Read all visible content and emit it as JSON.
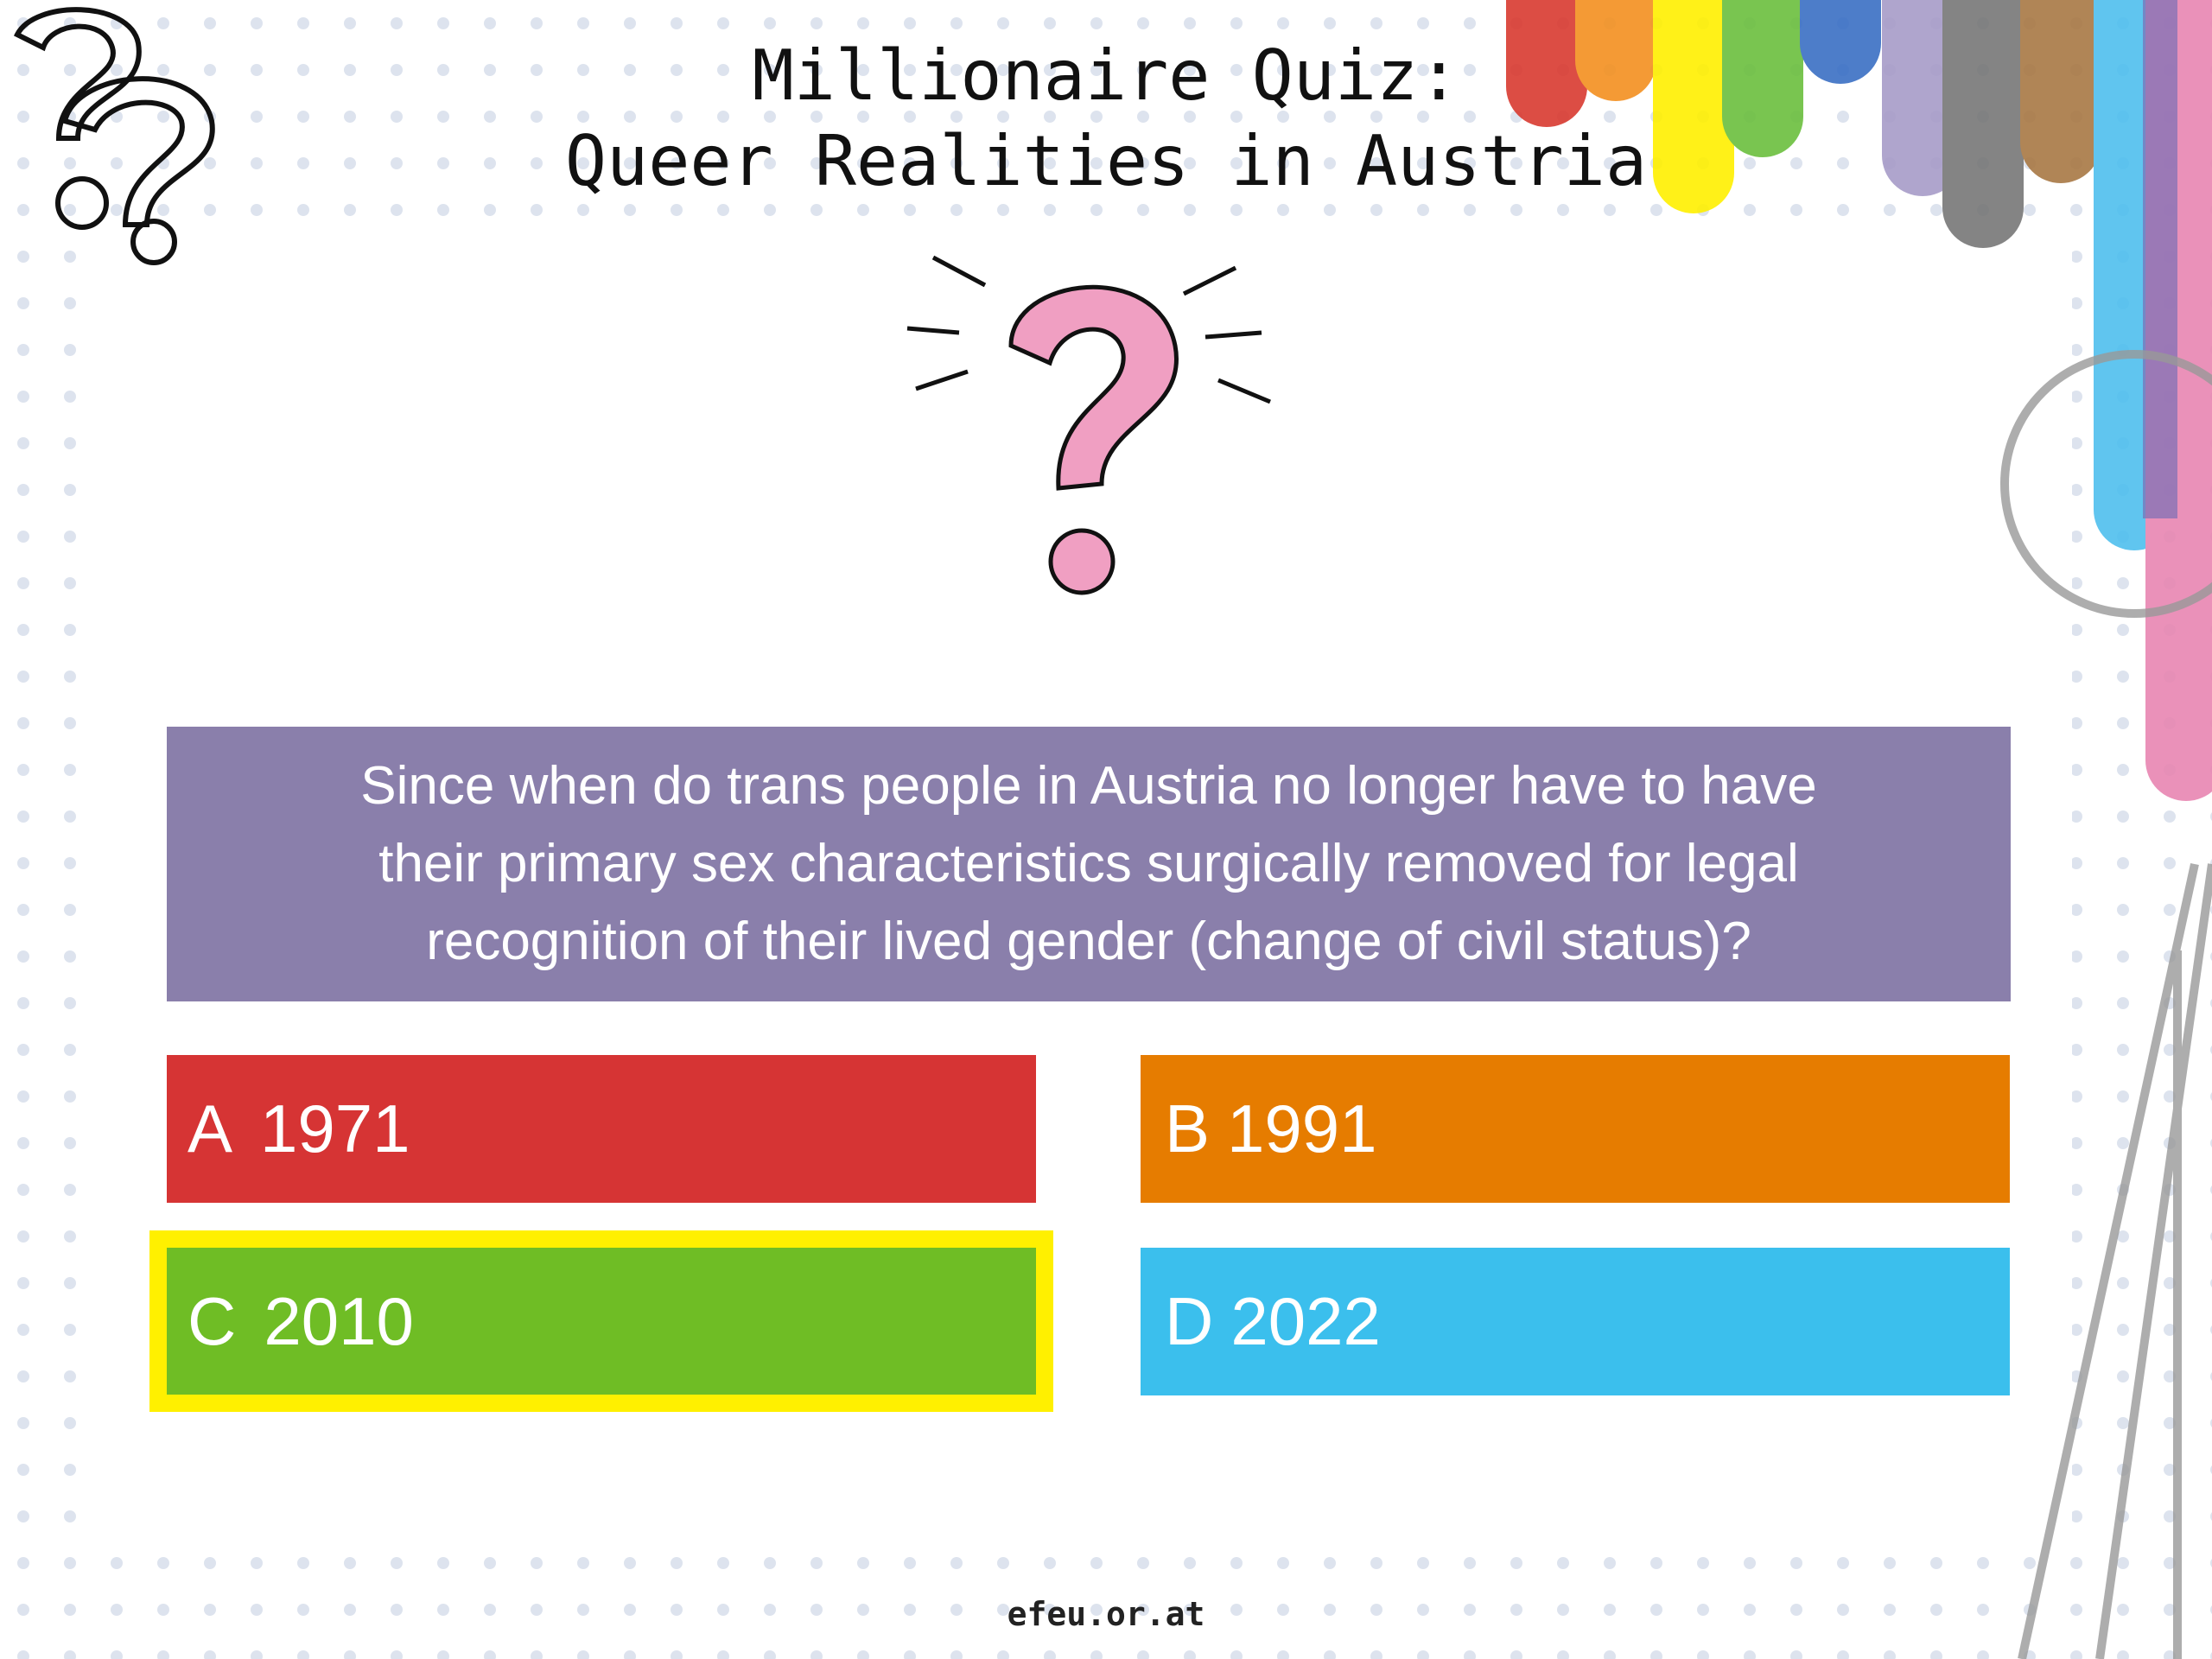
{
  "header": {
    "title_lines": [
      "Millionaire Quiz:",
      "Queer Realities in Austria"
    ]
  },
  "question": {
    "lines": [
      "Since when do trans people in Austria no longer have to have",
      "their primary sex characteristics surgically removed for legal",
      "recognition of their lived gender (change of civil status)?"
    ]
  },
  "answers": [
    {
      "letter": "A",
      "text": "1971"
    },
    {
      "letter": "B",
      "text": "1991"
    },
    {
      "letter": "C",
      "text": "2010"
    },
    {
      "letter": "D",
      "text": "2022"
    }
  ],
  "footer": {
    "text": "efeu.or.at"
  }
}
